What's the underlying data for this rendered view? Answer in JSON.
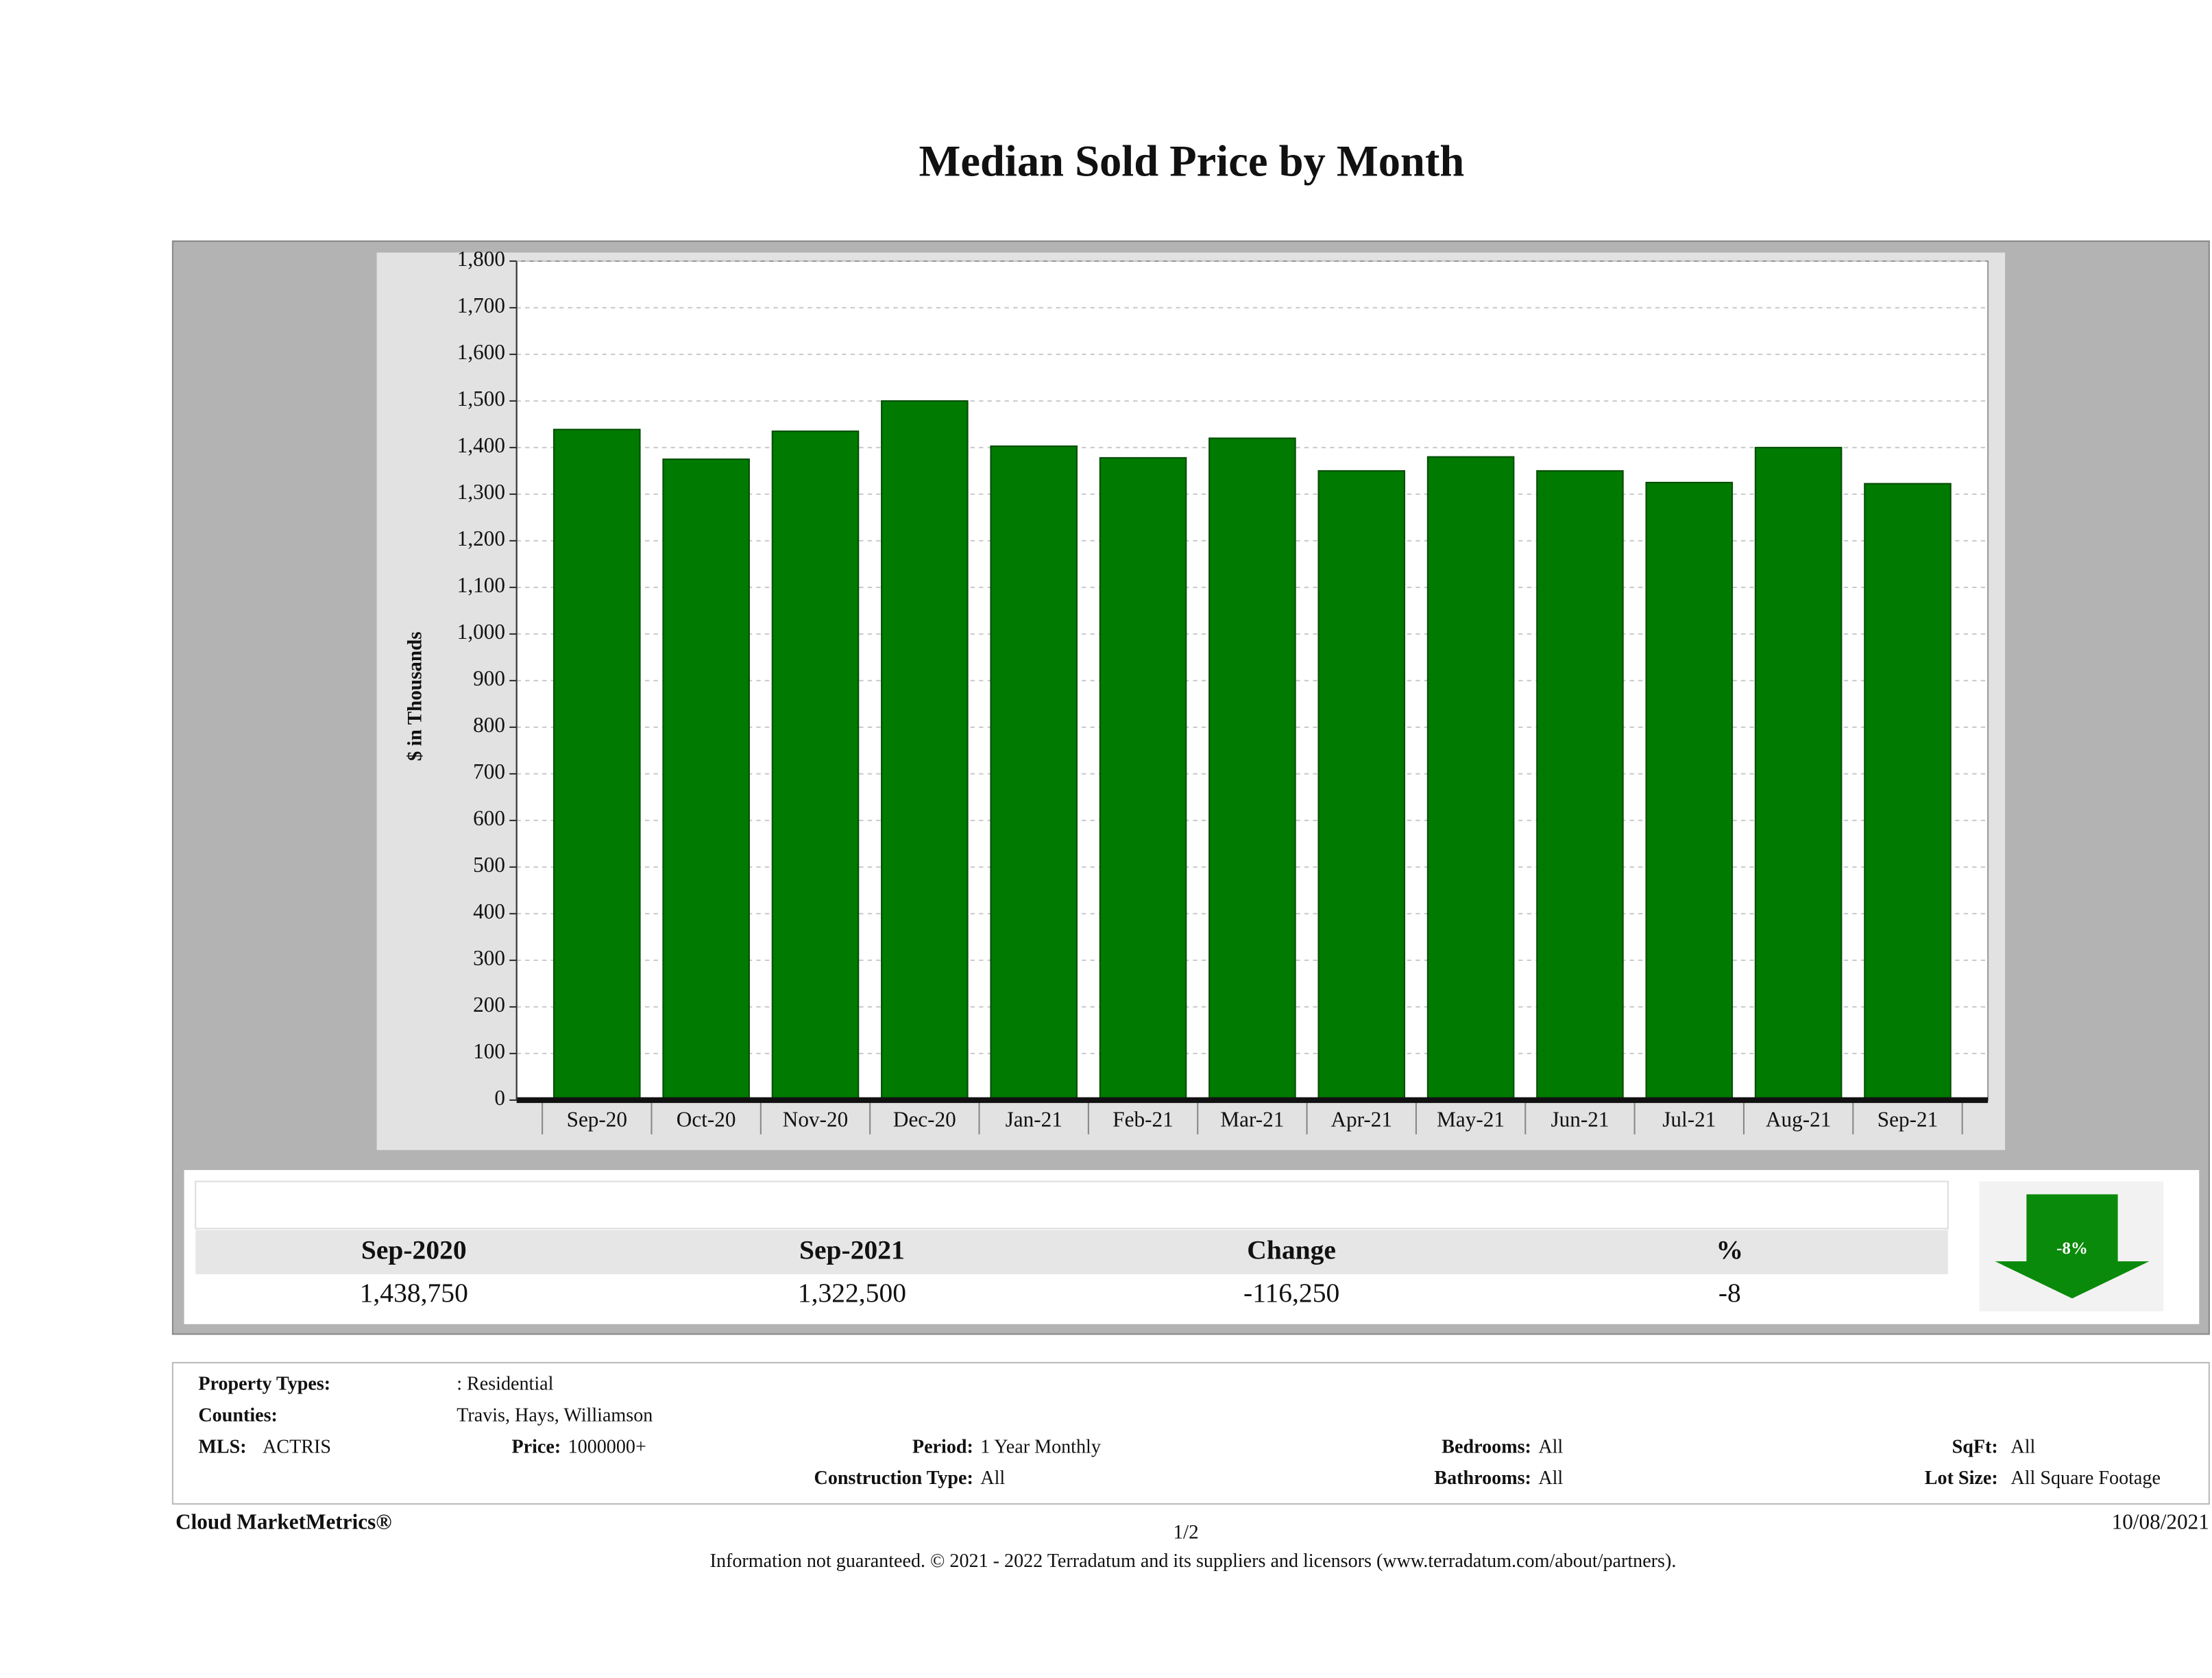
{
  "chart_data": {
    "type": "bar",
    "title": "Median Sold Price by Month",
    "y_label": "$ in Thousands",
    "categories": [
      "Sep-20",
      "Oct-20",
      "Nov-20",
      "Dec-20",
      "Jan-21",
      "Feb-21",
      "Mar-21",
      "Apr-21",
      "May-21",
      "Jun-21",
      "Jul-21",
      "Aug-21",
      "Sep-21"
    ],
    "values": [
      1438.75,
      1375,
      1435,
      1500,
      1403,
      1378,
      1420,
      1350,
      1380,
      1350,
      1325,
      1400,
      1322.5
    ],
    "color": "#007a00",
    "ylim": [
      0,
      1800
    ],
    "yticks": [
      0,
      100,
      200,
      300,
      400,
      500,
      600,
      700,
      800,
      900,
      {
        "value": 1000,
        "label": "1,000"
      },
      {
        "value": 1100,
        "label": "1,100"
      },
      {
        "value": 1200,
        "label": "1,200"
      },
      {
        "value": 1300,
        "label": "1,300"
      },
      {
        "value": 1400,
        "label": "1,400"
      },
      {
        "value": 1500,
        "label": "1,500"
      },
      {
        "value": 1600,
        "label": "1,600"
      },
      {
        "value": 1700,
        "label": "1,700"
      },
      {
        "value": 1800,
        "label": "1,800"
      }
    ],
    "grid": true
  },
  "summary": {
    "headers": [
      "Sep-2020",
      "Sep-2021",
      "Change",
      "%"
    ],
    "values": [
      "1,438,750",
      "1,322,500",
      "-116,250",
      "-8"
    ],
    "badge": "-8%"
  },
  "details": {
    "property_types": {
      "label": "Property Types:",
      "value": ": Residential"
    },
    "counties": {
      "label": "Counties:",
      "value": "Travis, Hays, Williamson"
    },
    "mls": {
      "label": "MLS:",
      "value": "ACTRIS"
    },
    "price": {
      "label": "Price:",
      "value": "1000000+"
    },
    "period": {
      "label": "Period:",
      "value": "1 Year Monthly"
    },
    "construction": {
      "label": "Construction Type:",
      "value": "All"
    },
    "bedrooms": {
      "label": "Bedrooms:",
      "value": "All"
    },
    "bathrooms": {
      "label": "Bathrooms:",
      "value": "All"
    },
    "sqft": {
      "label": "SqFt:",
      "value": "All"
    },
    "lot_size": {
      "label": "Lot Size:",
      "value": "All Square Footage"
    }
  },
  "footer": {
    "brand": "Cloud MarketMetrics®",
    "page": "1/2",
    "date": "10/08/2021",
    "disclaimer": "Information not guaranteed. © 2021 - 2022 Terradatum and its suppliers and licensors (www.terradatum.com/about/partners)."
  }
}
